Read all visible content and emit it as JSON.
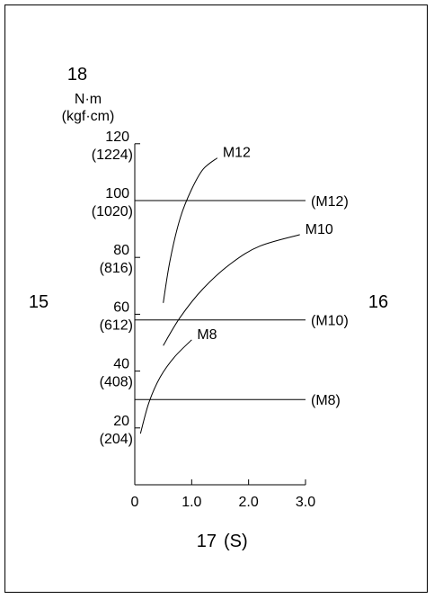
{
  "chart_data": {
    "type": "line",
    "callouts": {
      "y_axis": "18",
      "left": "15",
      "right": "16",
      "x_axis": "17"
    },
    "ylabel": "N·m",
    "ylabel_alt": "(kgf·cm)",
    "xunit": "(S)",
    "xlim": [
      0,
      3.0
    ],
    "ylim": [
      0,
      120
    ],
    "x_ticks": [
      {
        "value": 0,
        "label": "0"
      },
      {
        "value": 1.0,
        "label": "1.0"
      },
      {
        "value": 2.0,
        "label": "2.0"
      },
      {
        "value": 3.0,
        "label": "3.0"
      }
    ],
    "y_ticks": [
      {
        "value": 20,
        "label": "20",
        "alt": "(204)"
      },
      {
        "value": 40,
        "label": "40",
        "alt": "(408)"
      },
      {
        "value": 60,
        "label": "60",
        "alt": "(612)"
      },
      {
        "value": 80,
        "label": "80",
        "alt": "(816)"
      },
      {
        "value": 100,
        "label": "100",
        "alt": "(1020)"
      },
      {
        "value": 120,
        "label": "120",
        "alt": "(1224)"
      }
    ],
    "series": [
      {
        "name": "M12",
        "x": [
          0.5,
          0.62,
          0.8,
          1.0,
          1.2,
          1.45
        ],
        "y": [
          64,
          79,
          94,
          104,
          111,
          115
        ]
      },
      {
        "name": "M10",
        "x": [
          0.5,
          0.8,
          1.2,
          1.7,
          2.2,
          2.9
        ],
        "y": [
          49,
          59,
          69,
          78,
          84,
          88
        ]
      },
      {
        "name": "M8",
        "x": [
          0.1,
          0.25,
          0.45,
          0.7,
          1.0
        ],
        "y": [
          18,
          29,
          38,
          45,
          51
        ]
      }
    ],
    "reference_lines": [
      {
        "name": "(M12)",
        "y": 100
      },
      {
        "name": "(M10)",
        "y": 58
      },
      {
        "name": "(M8)",
        "y": 30
      }
    ]
  }
}
